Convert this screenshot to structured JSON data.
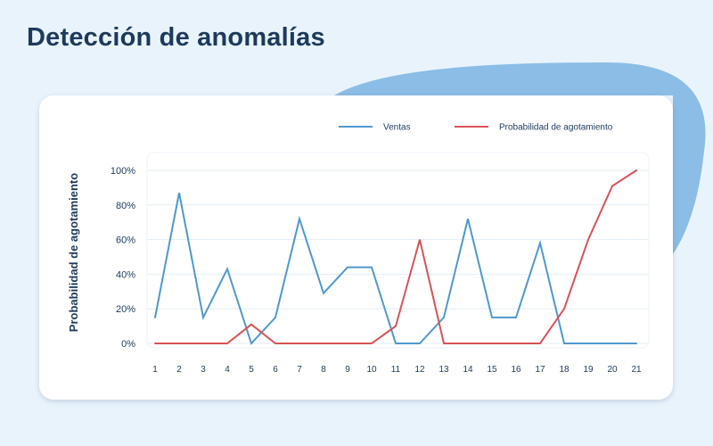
{
  "page": {
    "title": "Detección de anomalías"
  },
  "colors": {
    "background": "#e9f3fc",
    "blob": "#8bbde6",
    "ventas": "#4f98cf",
    "probabilidad": "#d95257",
    "grid": "#e3edf6",
    "text": "#1d3a5c"
  },
  "chart_data": {
    "type": "line",
    "title": "",
    "xlabel": "",
    "ylabel": "Probabilidad de agotamiento",
    "x": [
      1,
      2,
      3,
      4,
      5,
      6,
      7,
      8,
      9,
      10,
      11,
      12,
      13,
      14,
      15,
      16,
      17,
      18,
      19,
      20,
      21
    ],
    "x_tick_labels": [
      "1",
      "2",
      "3",
      "4",
      "5",
      "6",
      "7",
      "8",
      "9",
      "10",
      "11",
      "12",
      "13",
      "14",
      "15",
      "16",
      "17",
      "18",
      "19",
      "20",
      "21"
    ],
    "y_tick_labels": [
      "100%",
      "80%",
      "60%",
      "40%",
      "20%",
      "0%"
    ],
    "y_ticks": [
      100,
      80,
      60,
      40,
      20,
      0
    ],
    "ylim": [
      0,
      100
    ],
    "grid": true,
    "legend_position": "top-right",
    "series": [
      {
        "name": "Ventas",
        "color": "#4f98cf",
        "values": [
          15,
          87,
          15,
          43,
          0,
          15,
          72,
          29,
          44,
          44,
          0,
          0,
          15,
          72,
          15,
          15,
          58,
          0,
          0,
          0,
          0
        ]
      },
      {
        "name": "Probabilidad de agotamiento",
        "color": "#d95257",
        "values": [
          0,
          0,
          0,
          0,
          11,
          0,
          0,
          0,
          0,
          0,
          10,
          60,
          0,
          0,
          0,
          0,
          0,
          20,
          60,
          91,
          100
        ]
      }
    ]
  }
}
